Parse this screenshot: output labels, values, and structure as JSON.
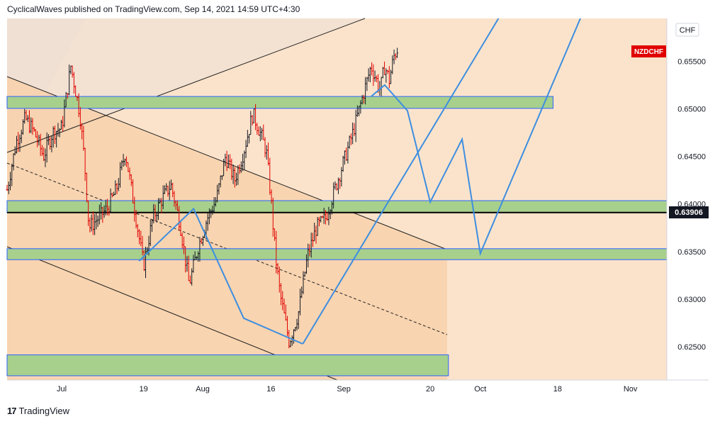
{
  "header": {
    "text": "CyclicalWaves published on TradingView.com, Sep 14, 2021 14:59 UTC+4:30"
  },
  "footer": {
    "brand": "TradingView",
    "logo": "tradingview-logo-icon"
  },
  "chart_data": {
    "type": "line",
    "symbol": "NZDCHF",
    "currency": "CHF",
    "last_price": "0.63906",
    "ylim": [
      0.6215,
      0.6595
    ],
    "y_ticks": [
      "0.65500",
      "0.65000",
      "0.64500",
      "0.64000",
      "0.63500",
      "0.63000",
      "0.62500"
    ],
    "y_tick_values": [
      0.655,
      0.65,
      0.645,
      0.64,
      0.635,
      0.63,
      0.625
    ],
    "x_ticks": [
      "Jul",
      "19",
      "Aug",
      "16",
      "Sep",
      "20",
      "Oct",
      "18",
      "Nov"
    ],
    "x_tick_days": [
      0,
      18,
      31,
      46,
      62,
      81,
      92,
      109,
      125
    ],
    "xlim": [
      -12,
      133
    ],
    "grid": false,
    "colors": {
      "up_candle": "#131722",
      "down_candle": "#e00000",
      "zone_fill": "#a8d08d",
      "zone_border": "#2962ff",
      "projection": "#3d8ee0",
      "background": "#fbe3cb",
      "channel_fill": "#f7d2ad",
      "symbol_badge": "#e00000"
    },
    "price_series": {
      "name": "NZDCHF",
      "days": [
        -12,
        -10,
        -8,
        -6,
        -4,
        -2,
        0,
        2,
        4,
        5,
        6,
        8,
        10,
        12,
        14,
        16,
        18,
        20,
        22,
        24,
        26,
        28,
        30,
        32,
        34,
        36,
        38,
        40,
        42,
        44,
        45,
        46,
        47,
        48,
        50,
        52,
        54,
        56,
        58,
        60,
        62,
        64,
        66,
        68,
        70,
        71,
        72,
        73,
        74
      ],
      "values": [
        0.6415,
        0.6465,
        0.649,
        0.6475,
        0.645,
        0.6475,
        0.648,
        0.6545,
        0.6495,
        0.6445,
        0.6375,
        0.6385,
        0.6395,
        0.6415,
        0.6455,
        0.6395,
        0.6335,
        0.6385,
        0.6405,
        0.642,
        0.638,
        0.6315,
        0.6355,
        0.6385,
        0.6405,
        0.645,
        0.6425,
        0.6455,
        0.6495,
        0.647,
        0.6455,
        0.6405,
        0.6345,
        0.6305,
        0.6255,
        0.6285,
        0.6345,
        0.6375,
        0.6385,
        0.6415,
        0.6445,
        0.6475,
        0.651,
        0.6545,
        0.652,
        0.6545,
        0.653,
        0.6555,
        0.6565
      ]
    },
    "zones": [
      {
        "from": 0.6513,
        "to": 0.65005,
        "x_end_day": 108
      },
      {
        "from": 0.64035,
        "to": 0.6391,
        "x_end_day": 133
      },
      {
        "from": 0.6353,
        "to": 0.63415,
        "x_end_day": 133
      },
      {
        "from": 0.62415,
        "to": 0.62195,
        "x_end_day": 85
      }
    ],
    "support_line": 0.6391,
    "projections": [
      {
        "name": "wave-left",
        "days": [
          17,
          29,
          40,
          53
        ],
        "values": [
          0.634,
          0.6395,
          0.628,
          0.6253
        ]
      },
      {
        "name": "wave-right",
        "days": [
          68,
          71,
          76,
          81,
          88,
          92,
          114
        ],
        "values": [
          0.6513,
          0.6525,
          0.6498,
          0.6402,
          0.6468,
          0.6348,
          0.6595
        ]
      }
    ]
  }
}
